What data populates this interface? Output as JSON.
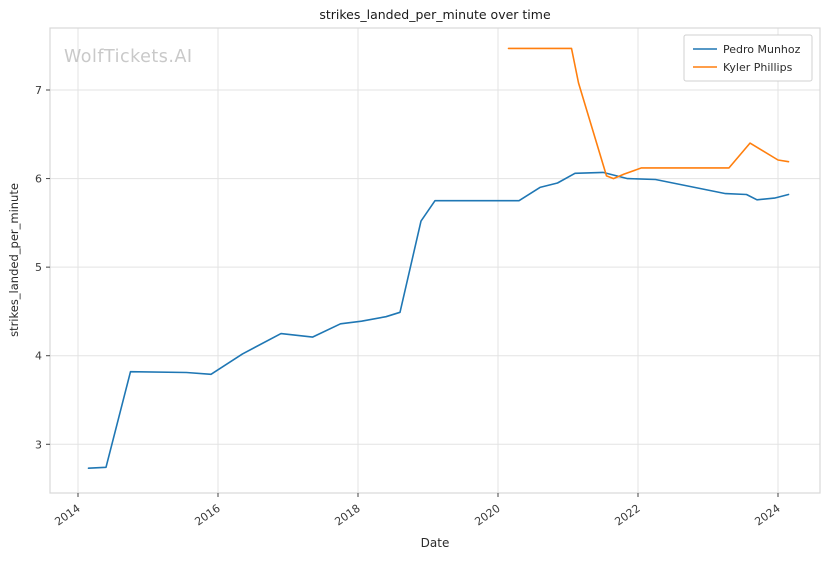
{
  "watermark": "WolfTickets.AI",
  "chart_data": {
    "type": "line",
    "title": "strikes_landed_per_minute over time",
    "xlabel": "Date",
    "ylabel": "strikes_landed_per_minute",
    "xlim": [
      2013.6,
      2024.6
    ],
    "ylim": [
      2.45,
      7.7
    ],
    "x_ticks": [
      2014,
      2016,
      2018,
      2020,
      2022,
      2024
    ],
    "y_ticks": [
      3,
      4,
      5,
      6,
      7
    ],
    "grid": true,
    "legend_position": "upper right",
    "grid_color": "#e3e3e3",
    "border_color": "#d8d8d8",
    "series": [
      {
        "name": "Pedro Munhoz",
        "color": "#1f77b4",
        "x": [
          2014.15,
          2014.4,
          2014.75,
          2015.55,
          2015.9,
          2016.35,
          2016.9,
          2017.35,
          2017.75,
          2018.05,
          2018.4,
          2018.6,
          2018.9,
          2019.1,
          2019.5,
          2020.3,
          2020.6,
          2020.85,
          2021.1,
          2021.5,
          2021.85,
          2022.25,
          2023.25,
          2023.55,
          2023.7,
          2023.95,
          2024.15
        ],
        "y": [
          2.73,
          2.74,
          3.82,
          3.81,
          3.79,
          4.02,
          4.25,
          4.21,
          4.36,
          4.39,
          4.44,
          4.49,
          5.52,
          5.75,
          5.75,
          5.75,
          5.9,
          5.95,
          6.06,
          6.07,
          6.0,
          5.99,
          5.83,
          5.82,
          5.76,
          5.78,
          5.82
        ]
      },
      {
        "name": "Kyler Phillips",
        "color": "#ff7f0e",
        "x": [
          2020.15,
          2021.05,
          2021.15,
          2021.55,
          2021.65,
          2021.8,
          2022.05,
          2023.3,
          2023.6,
          2024.0,
          2024.15
        ],
        "y": [
          7.47,
          7.47,
          7.08,
          6.03,
          6.0,
          6.05,
          6.12,
          6.12,
          6.4,
          6.21,
          6.19
        ]
      }
    ]
  }
}
